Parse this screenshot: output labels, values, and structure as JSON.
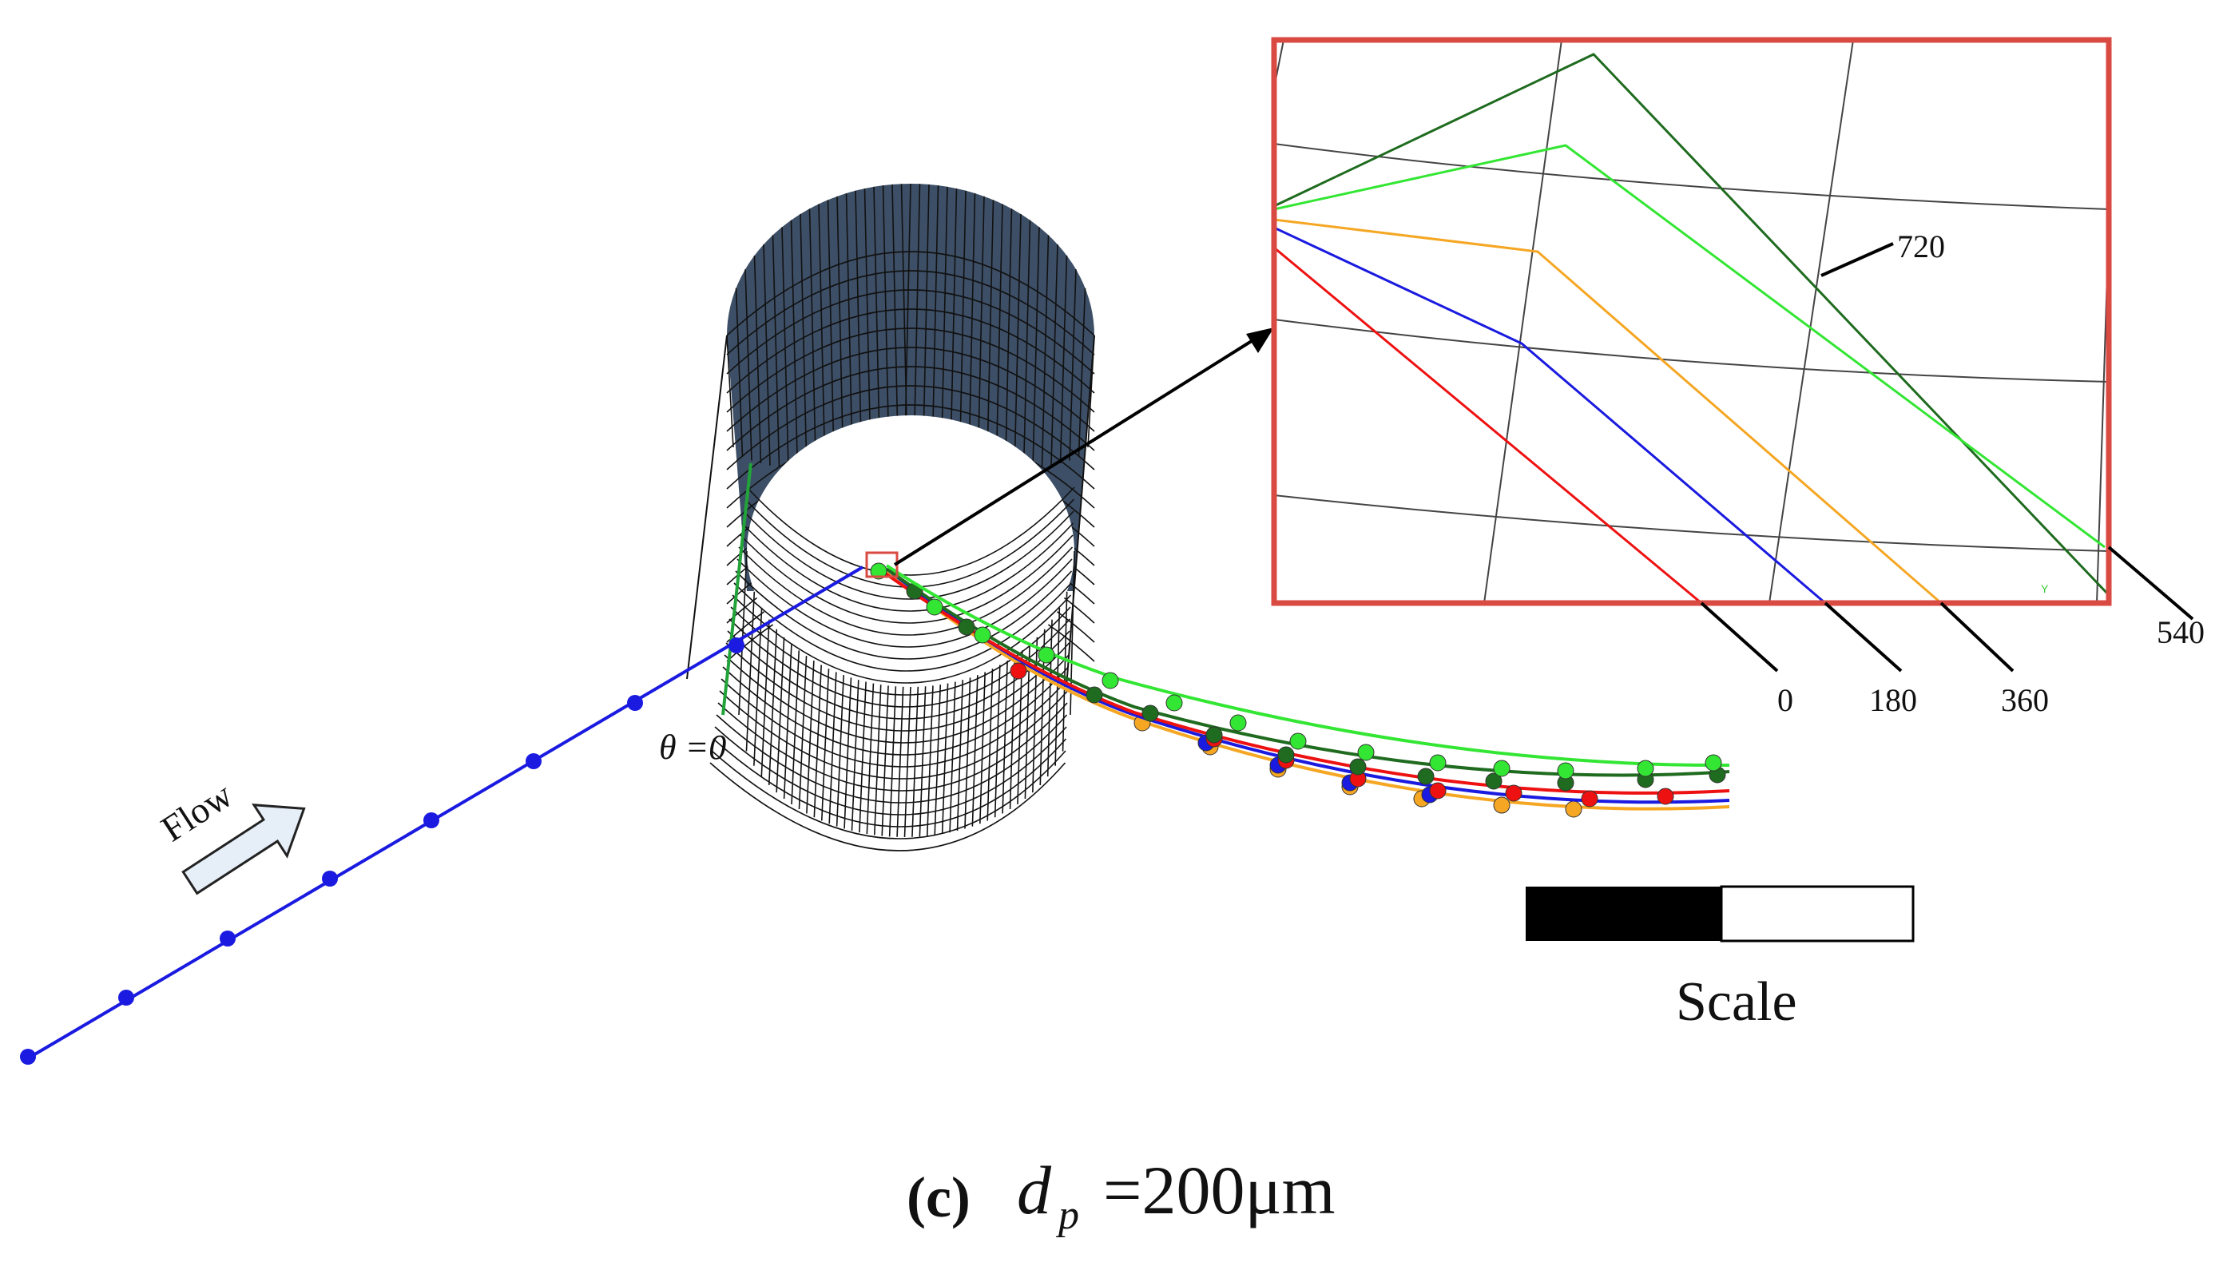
{
  "figure": {
    "flow_label": "Flow",
    "theta_label": "θ =0",
    "scale_label": "Scale",
    "caption": {
      "letter": "(c)",
      "symbol": "d",
      "subscript": "p",
      "equation": "=200μm"
    }
  },
  "inset": {
    "border_color": "#d94a42",
    "labels": [
      "720",
      "540",
      "0",
      "180",
      "360"
    ],
    "axis_letter": "Y"
  },
  "trajectories": [
    {
      "label": "0",
      "color": "#ee1111"
    },
    {
      "label": "180",
      "color": "#1a1ae0"
    },
    {
      "label": "360",
      "color": "#f5a623"
    },
    {
      "label": "540",
      "color": "#33e633"
    },
    {
      "label": "720",
      "color": "#1f6b1f"
    }
  ],
  "colors": {
    "cylinder_top": "#3d4f66",
    "mesh_line": "#111111",
    "flow_arrow_fill": "#e6eef8",
    "scale_dark": "#000000"
  }
}
